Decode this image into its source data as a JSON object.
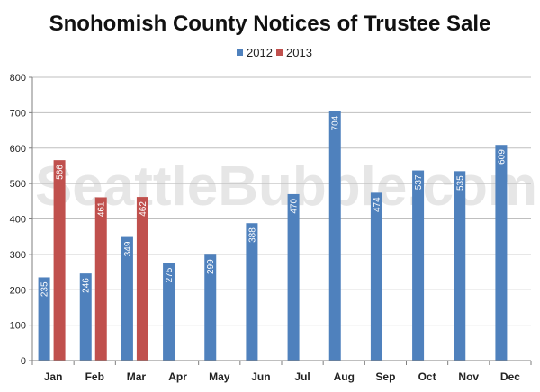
{
  "watermark": "SeattleBubble.com",
  "colors": {
    "s2012": "#4f81bd",
    "s2013": "#c0504d",
    "grid": "#bfbfbf",
    "axis": "#7f7f7f"
  },
  "chart_data": {
    "type": "bar",
    "title": "Snohomish County Notices of Trustee Sale",
    "xlabel": "",
    "ylabel": "",
    "ylim": [
      0,
      800
    ],
    "yticks": [
      0,
      100,
      200,
      300,
      400,
      500,
      600,
      700,
      800
    ],
    "grid": true,
    "legend_position": "top",
    "categories": [
      "Jan",
      "Feb",
      "Mar",
      "Apr",
      "May",
      "Jun",
      "Jul",
      "Aug",
      "Sep",
      "Oct",
      "Nov",
      "Dec"
    ],
    "series": [
      {
        "name": "2012",
        "color": "#4f81bd",
        "values": [
          235,
          246,
          349,
          275,
          299,
          388,
          470,
          704,
          474,
          537,
          535,
          609
        ]
      },
      {
        "name": "2013",
        "color": "#c0504d",
        "values": [
          566,
          461,
          462,
          null,
          null,
          null,
          null,
          null,
          null,
          null,
          null,
          null
        ]
      }
    ]
  }
}
